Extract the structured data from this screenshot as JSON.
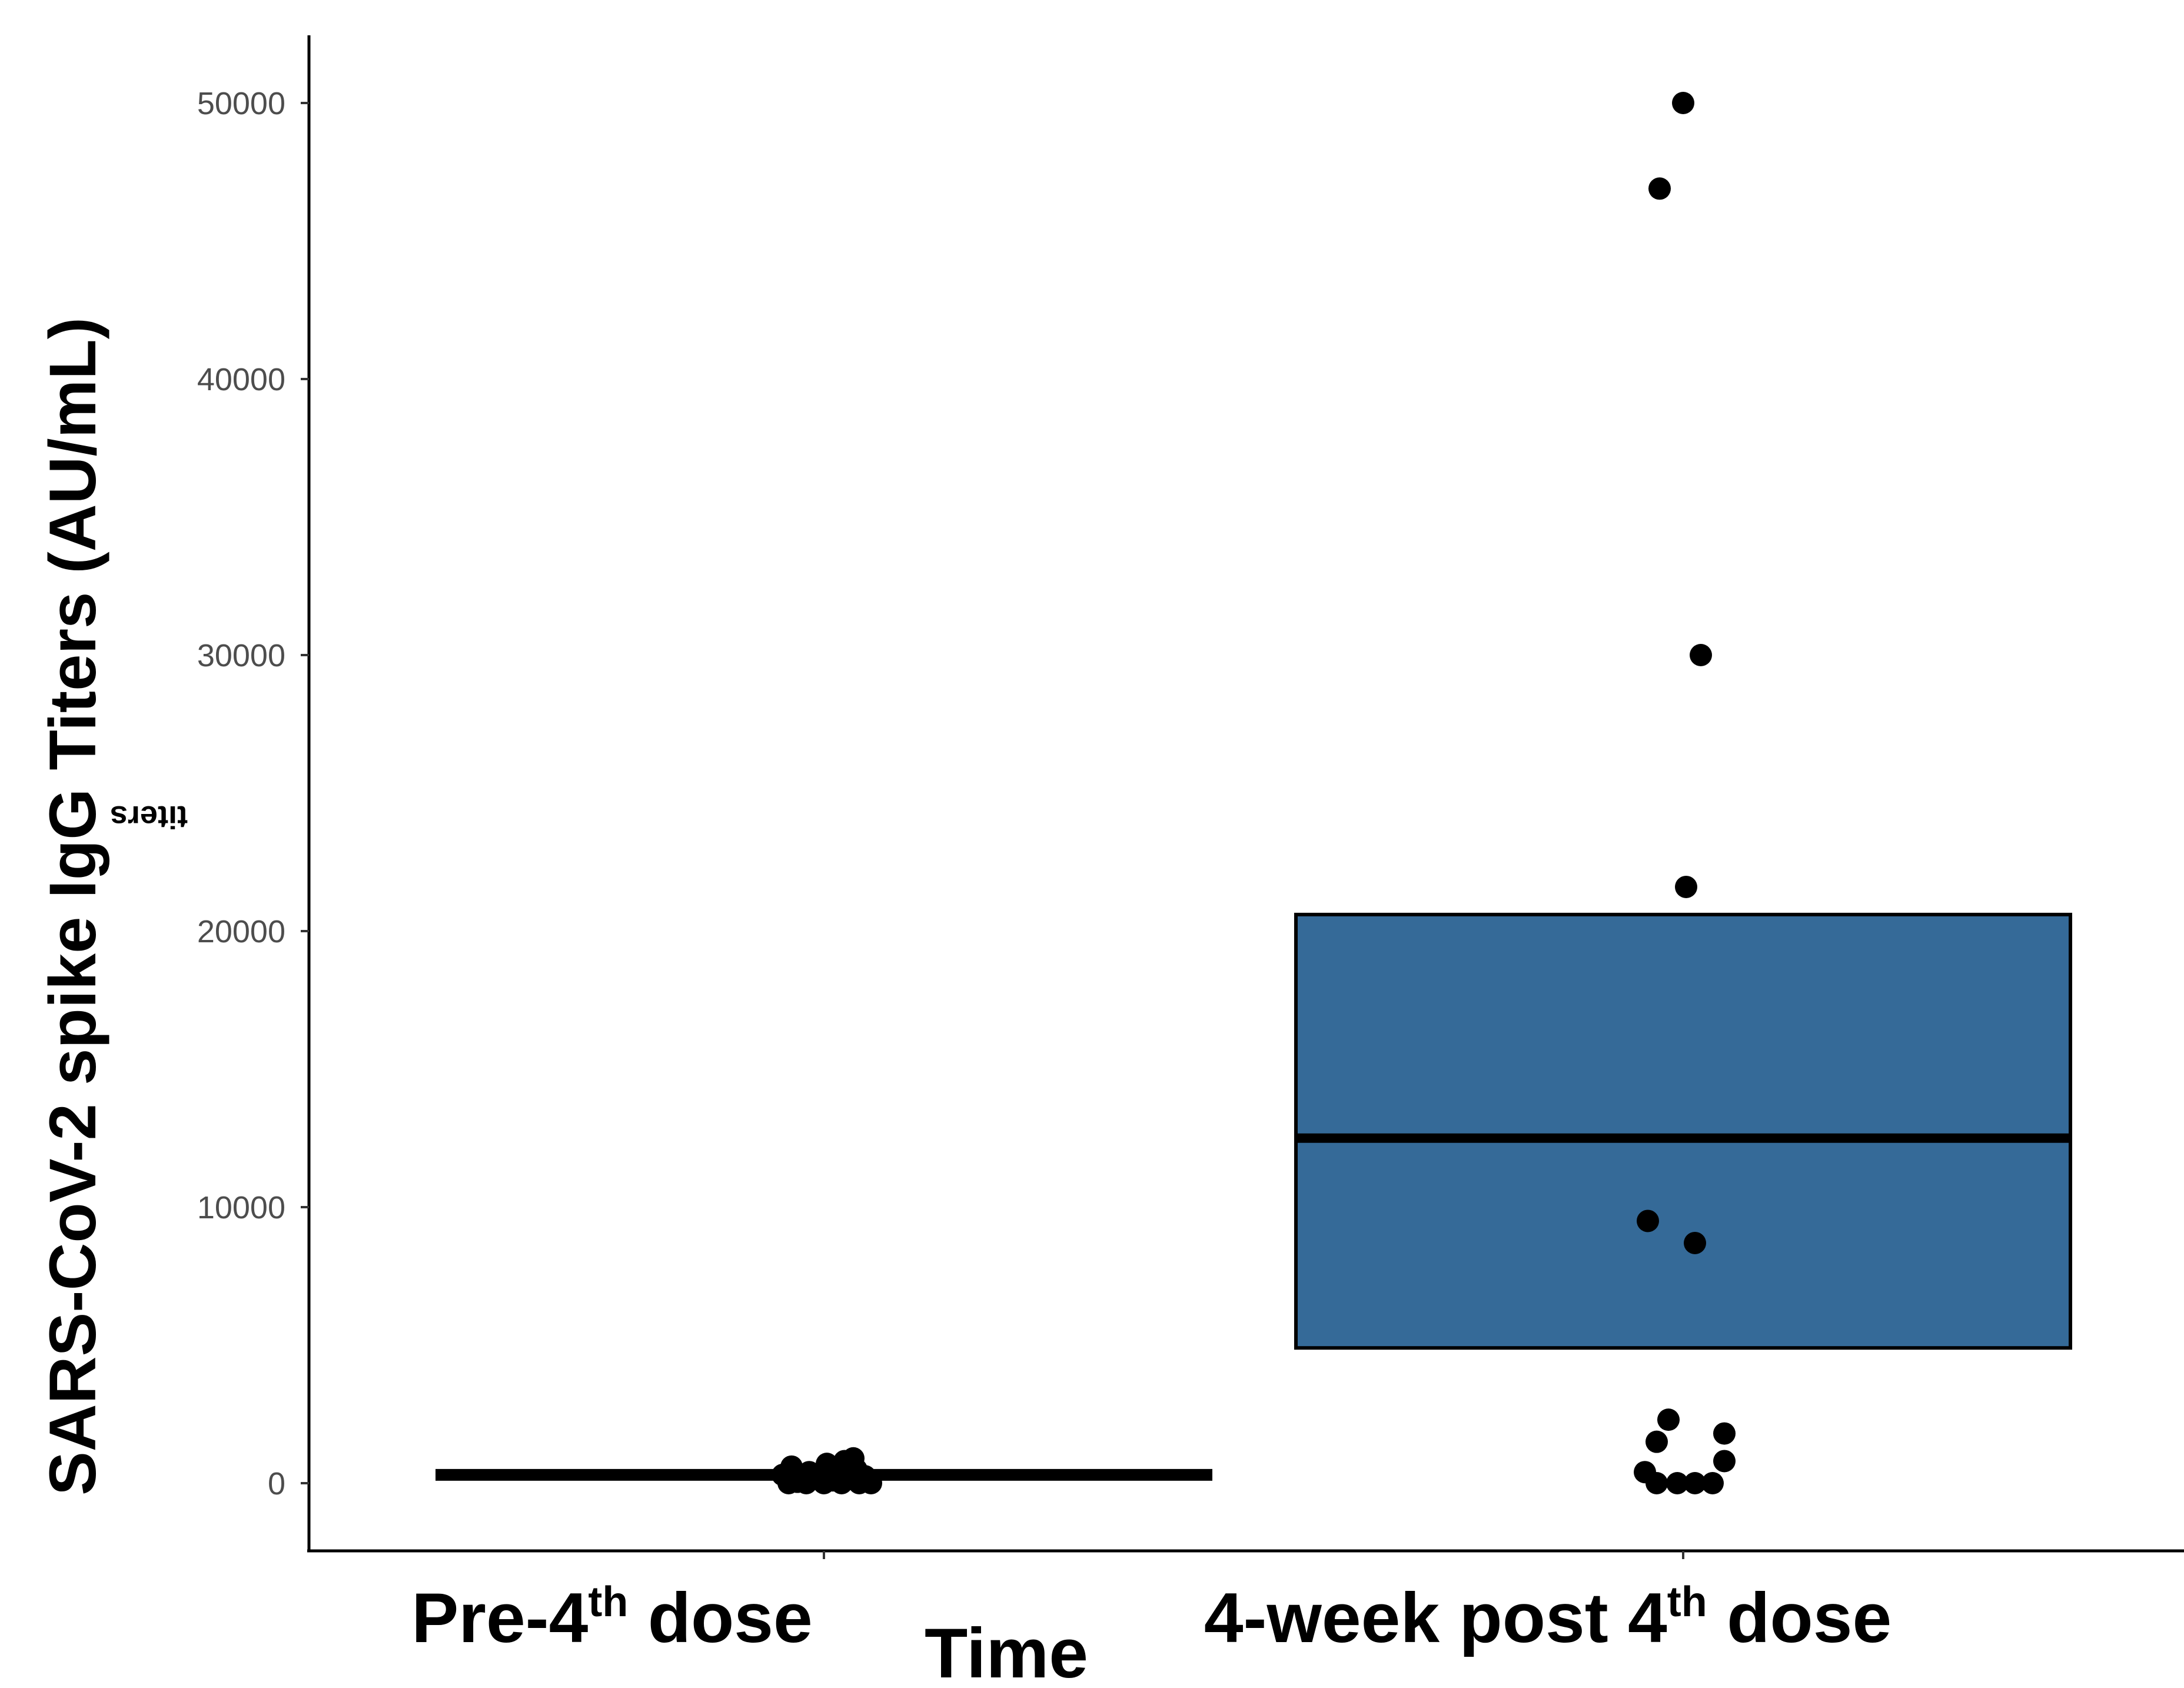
{
  "chart_data": {
    "type": "box",
    "xlabel": "Time",
    "ylabel": "SARS-CoV-2 spike IgG Titers (AU/mL)",
    "ylabel_ghost": "titers",
    "ylim": [
      -2500,
      52500
    ],
    "yticks": [
      0,
      10000,
      20000,
      30000,
      40000,
      50000
    ],
    "ytick_labels": [
      "0",
      "10000",
      "20000",
      "30000",
      "40000",
      "50000"
    ],
    "grid": false,
    "categories": [
      {
        "main": "Pre-4",
        "sup": "th",
        "rest": " dose"
      },
      {
        "main": "4-week post 4",
        "sup": "th",
        "rest": " dose"
      }
    ],
    "boxes": [
      {
        "category": 0,
        "q1": 150,
        "median": 300,
        "q3": 450
      },
      {
        "category": 1,
        "q1": 4900,
        "median": 12500,
        "q3": 20600
      }
    ],
    "points": [
      {
        "category": 0,
        "values": [
          0,
          0,
          0,
          0,
          0,
          0,
          50,
          100,
          150,
          200,
          250,
          300,
          350,
          400,
          500,
          600,
          700,
          800,
          900
        ]
      },
      {
        "category": 1,
        "values": [
          50000,
          46900,
          30000,
          21600,
          9500,
          8700,
          2300,
          1800,
          1500,
          800,
          400,
          0,
          0,
          0,
          0
        ]
      }
    ],
    "colors": {
      "box_fill": "#356a98",
      "box_stroke": "#000000",
      "points": "#000000",
      "axis": "#000000"
    }
  }
}
